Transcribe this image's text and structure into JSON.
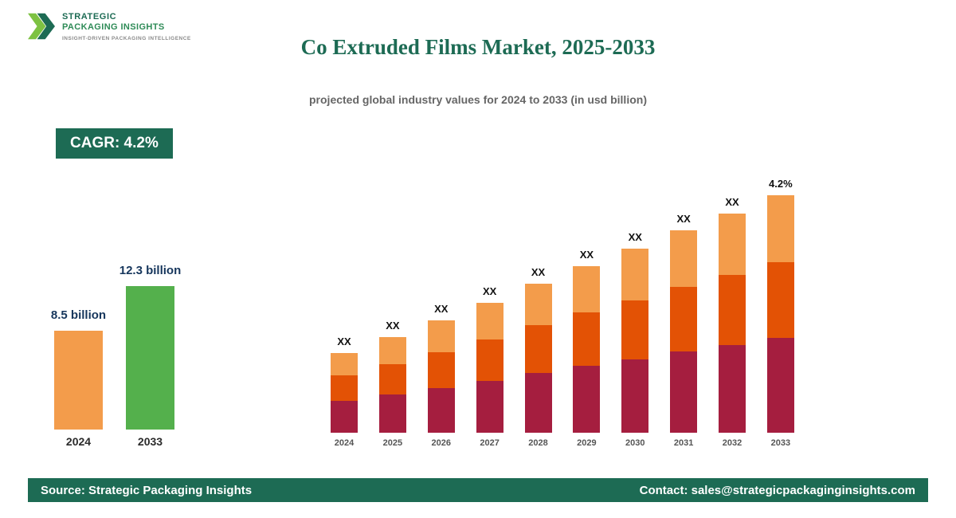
{
  "brand": {
    "name_line1": "STRATEGIC",
    "name_line2": "PACKAGING INSIGHTS",
    "tagline": "INSIGHT-DRIVEN PACKAGING INTELLIGENCE"
  },
  "header": {
    "title": "Co Extruded Films Market, 2025-2033",
    "subtitle": "projected global industry values for 2024 to 2033 (in usd billion)"
  },
  "cagr_badge": "CAGR: 4.2%",
  "theme": {
    "primary_green": "#1D6B54",
    "maroon": "#A51E3F",
    "dark_orange": "#E35205",
    "light_orange": "#F39C4B",
    "summary_green": "#54B04C",
    "label_navy": "#16365C"
  },
  "chart_data": [
    {
      "type": "bar",
      "title": "Market size 2024 vs 2033",
      "categories": [
        "2024",
        "2033"
      ],
      "values": [
        8.5,
        12.3
      ],
      "value_labels": [
        "8.5 billion",
        "12.3 billion"
      ],
      "bar_colors": [
        "#F39C4B",
        "#54B04C"
      ],
      "unit": "USD billion",
      "grid": false,
      "legend": false
    },
    {
      "type": "bar",
      "subtype": "stacked",
      "title": "Projected global industry values 2024-2033",
      "categories": [
        "2024",
        "2025",
        "2026",
        "2027",
        "2028",
        "2029",
        "2030",
        "2031",
        "2032",
        "2033"
      ],
      "series": [
        {
          "name": "bottom segment",
          "key": "bottom",
          "color": "#A51E3F",
          "values": [
            40,
            48,
            56,
            65,
            75,
            84,
            92,
            102,
            110,
            119
          ]
        },
        {
          "name": "middle segment",
          "key": "middle",
          "color": "#E35205",
          "values": [
            32,
            38,
            45,
            52,
            60,
            67,
            74,
            81,
            88,
            95
          ]
        },
        {
          "name": "top segment",
          "key": "top",
          "color": "#F39C4B",
          "values": [
            28,
            34,
            40,
            46,
            52,
            58,
            65,
            71,
            77,
            84
          ]
        }
      ],
      "bar_labels": [
        "XX",
        "XX",
        "XX",
        "XX",
        "XX",
        "XX",
        "XX",
        "XX",
        "XX",
        "4.2%"
      ],
      "unit": "relative (actual values masked as XX in source image)",
      "grid": false,
      "legend": false
    }
  ],
  "footer": {
    "source": "Source: Strategic Packaging Insights",
    "contact": "Contact: sales@strategicpackaginginsights.com"
  }
}
